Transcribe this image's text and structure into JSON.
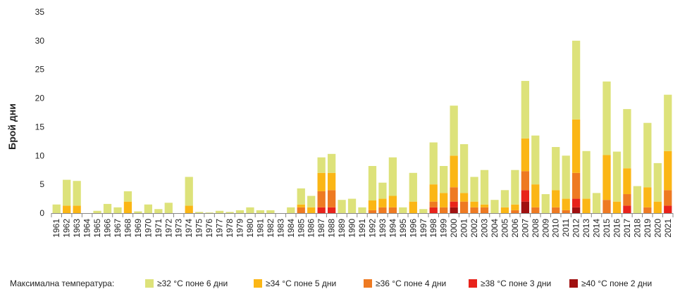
{
  "chart_data": {
    "type": "bar",
    "stacked": true,
    "title": "",
    "xlabel": "",
    "ylabel": "Брой дни",
    "ylim": [
      0,
      35
    ],
    "yticks": [
      0,
      5,
      10,
      15,
      20,
      25,
      30,
      35
    ],
    "grid": false,
    "legend_position": "bottom",
    "legend_title": "Максимална температура:",
    "categories": [
      "1961",
      "1962",
      "1963",
      "1964",
      "1965",
      "1966",
      "1967",
      "1968",
      "1969",
      "1970",
      "1971",
      "1972",
      "1973",
      "1974",
      "1975",
      "1976",
      "1977",
      "1978",
      "1979",
      "1980",
      "1981",
      "1982",
      "1983",
      "1984",
      "1985",
      "1986",
      "1987",
      "1988",
      "1989",
      "1990",
      "1991",
      "1992",
      "1993",
      "1994",
      "1995",
      "1996",
      "1997",
      "1998",
      "1999",
      "2000",
      "2001",
      "2002",
      "2003",
      "2004",
      "2005",
      "2006",
      "2007",
      "2008",
      "2009",
      "2010",
      "2011",
      "2012",
      "2013",
      "2014",
      "2015",
      "2016",
      "2017",
      "2018",
      "2019",
      "2020",
      "2021"
    ],
    "series": [
      {
        "name": "≥40 °C поне 2 дни",
        "color": "#a01010",
        "values": [
          0,
          0,
          0,
          0,
          0,
          0,
          0,
          0,
          0,
          0,
          0,
          0,
          0,
          0,
          0,
          0,
          0,
          0,
          0,
          0,
          0,
          0,
          0,
          0,
          0,
          0,
          0,
          0,
          0,
          0,
          0,
          0,
          0,
          0,
          0,
          0,
          0,
          0,
          0,
          1,
          0,
          0,
          0,
          0,
          0,
          0,
          2,
          0,
          0,
          0,
          0,
          1,
          0,
          0,
          0,
          0,
          0,
          0,
          0,
          0,
          0
        ]
      },
      {
        "name": "≥38 °C поне 3 дни",
        "color": "#e8231b",
        "values": [
          0,
          0,
          0,
          0,
          0,
          0,
          0,
          0,
          0,
          0,
          0,
          0,
          0,
          0,
          0,
          0,
          0,
          0,
          0,
          0,
          0,
          0,
          0,
          0,
          0,
          0,
          1,
          1,
          0,
          0,
          0,
          0,
          0,
          0,
          0,
          0,
          0,
          1,
          0,
          1,
          0,
          0,
          0,
          0,
          0,
          0,
          2,
          0,
          0,
          0,
          0,
          1.5,
          0,
          0,
          0,
          0,
          1.3,
          0,
          0,
          0,
          1.3
        ]
      },
      {
        "name": "≥36 °C поне 4 дни",
        "color": "#ee7a22",
        "values": [
          0,
          0,
          0,
          0,
          0,
          0,
          0,
          0,
          0,
          0,
          0,
          0,
          0,
          0,
          0,
          0,
          0,
          0,
          0,
          0,
          0,
          0,
          0,
          0,
          1,
          0,
          2.8,
          3,
          0,
          0,
          0,
          0.5,
          1,
          1,
          0,
          0,
          0,
          1,
          1,
          2.5,
          2,
          1,
          1,
          0,
          0,
          0.5,
          3.3,
          1,
          0,
          1,
          0.5,
          4.5,
          0,
          0,
          2.3,
          0,
          2,
          0,
          1,
          0,
          2.7
        ]
      },
      {
        "name": "≥34 °C поне 5 дни",
        "color": "#fbb615",
        "values": [
          0,
          1.3,
          1.3,
          0,
          0,
          0,
          0,
          2,
          0,
          0,
          0,
          0,
          0,
          1.3,
          0,
          0,
          0,
          0,
          0,
          0,
          0,
          0,
          0,
          0,
          0.5,
          1,
          3.2,
          3,
          0,
          0,
          0,
          1.7,
          1.5,
          2,
          0,
          2,
          0,
          3,
          2.5,
          5.5,
          1.5,
          1,
          0.5,
          0,
          1,
          1,
          5.7,
          4,
          0,
          3,
          2,
          9.3,
          2.5,
          0,
          7.8,
          2,
          4.5,
          0,
          3.5,
          2,
          6.8
        ]
      },
      {
        "name": "≥32 °C поне 6 дни",
        "color": "#dde27a",
        "values": [
          1.5,
          4.5,
          4.3,
          0,
          0.4,
          1.6,
          1,
          1.8,
          0.3,
          1.5,
          0.7,
          1.8,
          0,
          5,
          0.2,
          0.1,
          0.4,
          0.2,
          0.5,
          1,
          0.5,
          0.5,
          0,
          1,
          2.8,
          2,
          2.7,
          3.3,
          2.3,
          2.5,
          1,
          6,
          2.8,
          6.7,
          1,
          5,
          0.7,
          7.3,
          4.7,
          8.7,
          8.5,
          4.3,
          6,
          2.3,
          3,
          6,
          10,
          8.5,
          3.3,
          7.5,
          7.5,
          13.7,
          8.3,
          3.5,
          12.8,
          8.7,
          10.3,
          4.7,
          11.2,
          6.7,
          9.8
        ]
      }
    ]
  },
  "legend_icons": [
    "swatch-icon"
  ]
}
